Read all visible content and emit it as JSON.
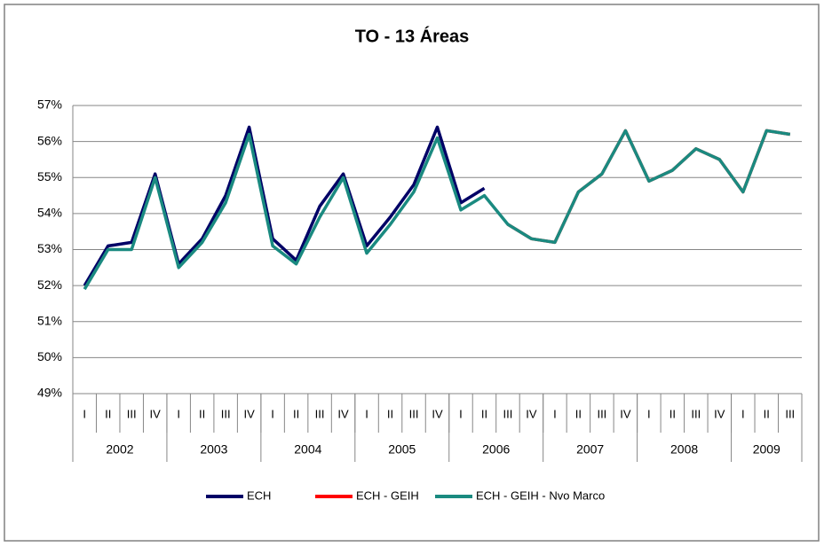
{
  "chart_data": {
    "type": "line",
    "title": "TO - 13 Áreas",
    "categories": [
      "I",
      "II",
      "III",
      "IV",
      "I",
      "II",
      "III",
      "IV",
      "I",
      "II",
      "III",
      "IV",
      "I",
      "II",
      "III",
      "IV",
      "I",
      "II",
      "III",
      "IV",
      "I",
      "II",
      "III",
      "IV",
      "I",
      "II",
      "III",
      "IV",
      "I",
      "II",
      "III"
    ],
    "category_groups": [
      {
        "label": "2002",
        "size": 4
      },
      {
        "label": "2003",
        "size": 4
      },
      {
        "label": "2004",
        "size": 4
      },
      {
        "label": "2005",
        "size": 4
      },
      {
        "label": "2006",
        "size": 4
      },
      {
        "label": "2007",
        "size": 4
      },
      {
        "label": "2008",
        "size": 4
      },
      {
        "label": "2009",
        "size": 3
      }
    ],
    "series": [
      {
        "name": "ECH",
        "color": "#000066",
        "values": [
          52.0,
          53.1,
          53.2,
          55.1,
          52.6,
          53.3,
          54.5,
          56.4,
          53.3,
          52.7,
          54.2,
          55.1,
          53.1,
          53.9,
          54.8,
          56.4,
          54.3,
          54.7,
          null,
          null,
          null,
          null,
          null,
          null,
          null,
          null,
          null,
          null,
          null,
          null,
          null
        ]
      },
      {
        "name": "ECH - GEIH",
        "color": "#ff0000",
        "values": [
          null,
          null,
          null,
          null,
          null,
          null,
          null,
          null,
          null,
          null,
          null,
          null,
          null,
          null,
          null,
          null,
          null,
          null,
          53.7,
          53.3,
          53.2,
          54.6,
          55.1,
          56.3,
          54.9,
          55.2,
          55.8,
          55.5,
          54.6,
          56.3,
          56.2
        ]
      },
      {
        "name": "ECH - GEIH - Nvo Marco",
        "color": "#1a8a80",
        "values": [
          51.9,
          53.0,
          53.0,
          55.0,
          52.5,
          53.2,
          54.3,
          56.2,
          53.1,
          52.6,
          53.9,
          55.0,
          52.9,
          53.7,
          54.6,
          56.1,
          54.1,
          54.5,
          53.7,
          53.3,
          53.2,
          54.6,
          55.1,
          56.3,
          54.9,
          55.2,
          55.8,
          55.5,
          54.6,
          56.3,
          56.2
        ]
      }
    ],
    "ylim": [
      49,
      57
    ],
    "yticks": [
      {
        "value": 49,
        "label": "49%"
      },
      {
        "value": 50,
        "label": "50%"
      },
      {
        "value": 51,
        "label": "51%"
      },
      {
        "value": 52,
        "label": "52%"
      },
      {
        "value": 53,
        "label": "53%"
      },
      {
        "value": 54,
        "label": "54%"
      },
      {
        "value": 55,
        "label": "55%"
      },
      {
        "value": 56,
        "label": "56%"
      },
      {
        "value": 57,
        "label": "57%"
      }
    ],
    "grid": true,
    "legend": "bottom"
  }
}
